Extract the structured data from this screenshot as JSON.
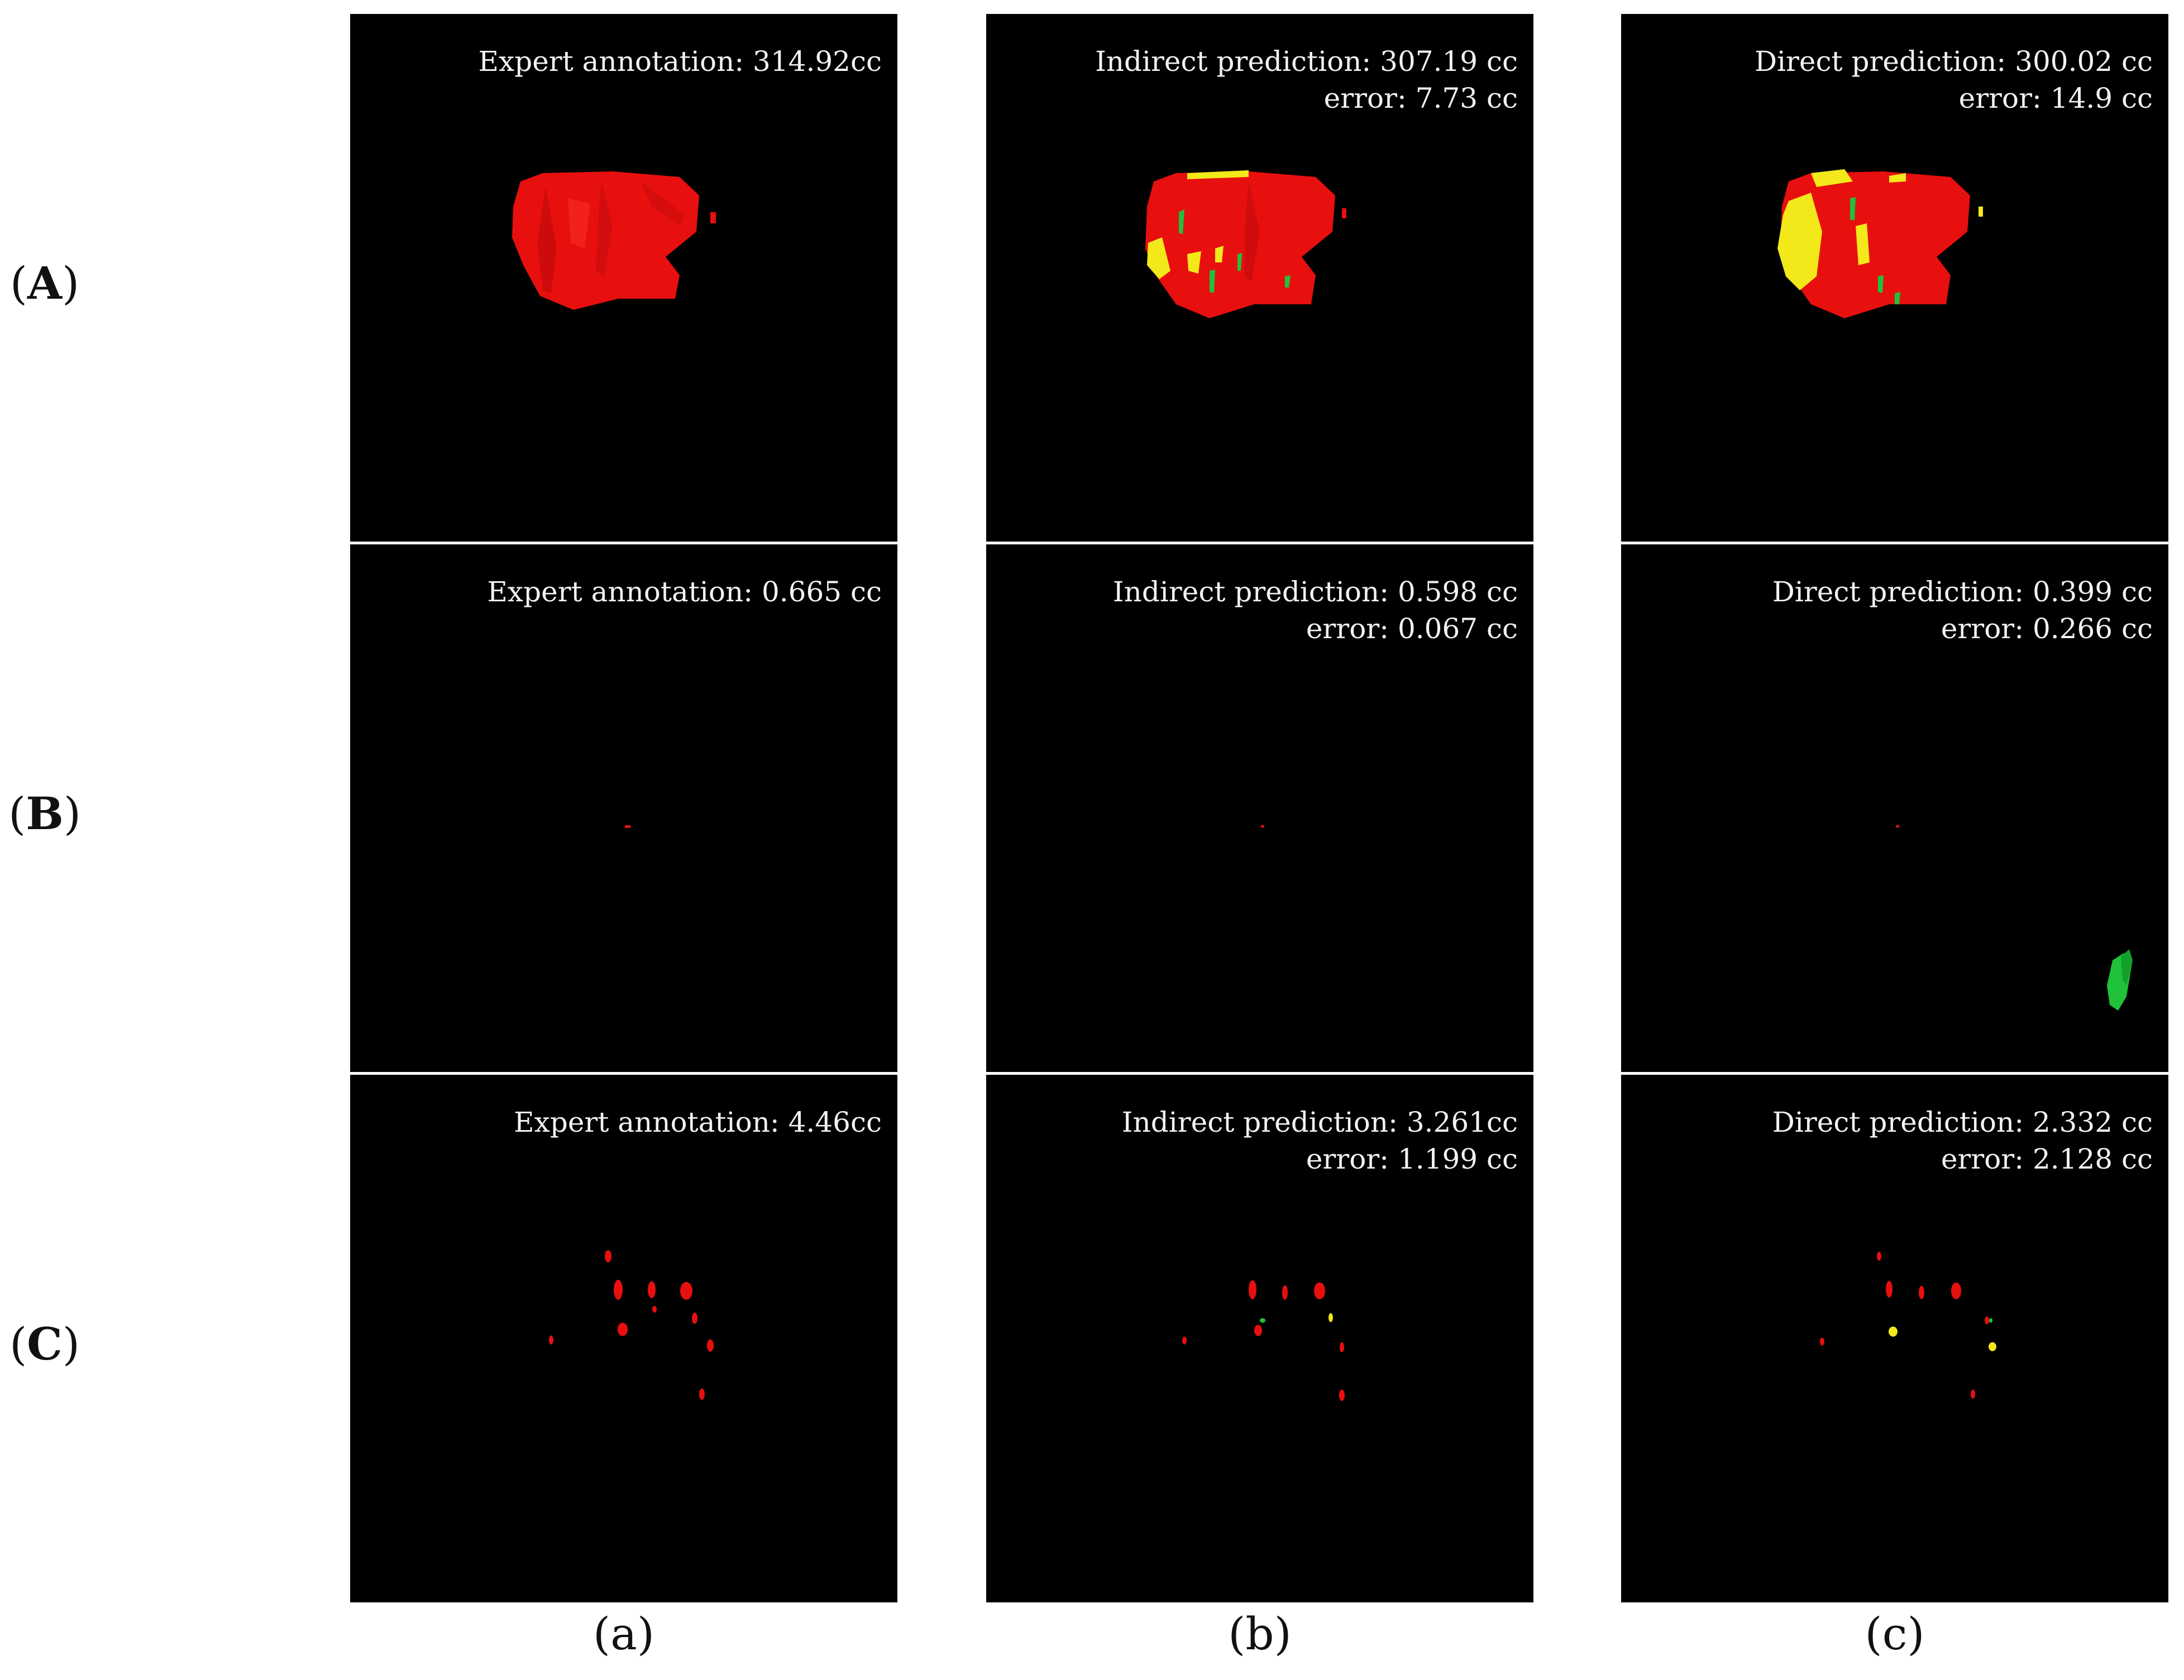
{
  "row_labels": [
    {
      "open": "(",
      "letter": "A",
      "close": ")"
    },
    {
      "open": "(",
      "letter": "B",
      "close": ")"
    },
    {
      "open": "(",
      "letter": "C",
      "close": ")"
    }
  ],
  "column_labels": [
    {
      "open": "(",
      "letter": "a",
      "close": ")"
    },
    {
      "open": "(",
      "letter": "b",
      "close": ")"
    },
    {
      "open": "(",
      "letter": "c",
      "close": ")"
    }
  ],
  "panels": {
    "A_a": {
      "volume": "Expert annotation: 314.92cc",
      "error": ""
    },
    "A_b": {
      "volume": "Indirect prediction: 307.19 cc",
      "error": "error: 7.73 cc"
    },
    "A_c": {
      "volume": "Direct prediction: 300.02 cc",
      "error": "error: 14.9 cc"
    },
    "B_a": {
      "volume": "Expert annotation: 0.665 cc",
      "error": ""
    },
    "B_b": {
      "volume": "Indirect prediction: 0.598 cc",
      "error": "error: 0.067 cc"
    },
    "B_c": {
      "volume": "Direct prediction: 0.399 cc",
      "error": "error: 0.266 cc"
    },
    "C_a": {
      "volume": "Expert annotation: 4.46cc",
      "error": ""
    },
    "C_b": {
      "volume": "Indirect prediction: 3.261cc",
      "error": "error: 1.199 cc"
    },
    "C_c": {
      "volume": "Direct prediction: 2.332 cc",
      "error": "error: 2.128 cc"
    }
  },
  "colors": {
    "panel_background": "#000000",
    "overlap": "#e80f0f",
    "false_positive": "#f2e81a",
    "false_negative": "#1fc23a",
    "caption_text": "#f2f2f2"
  }
}
